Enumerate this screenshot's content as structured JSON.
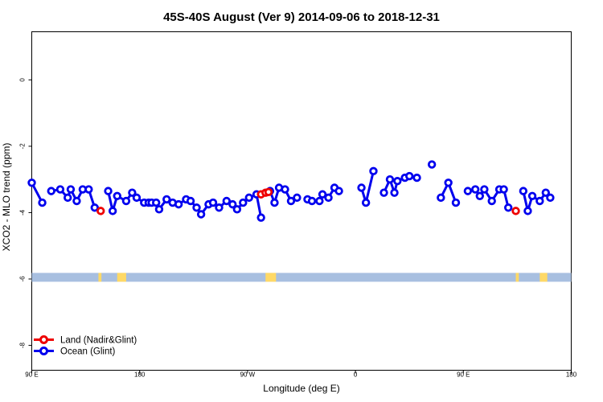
{
  "chart_data": {
    "type": "line",
    "title": "45S-40S August (Ver 9)   2014-09-06 to 2018-12-31",
    "xlabel": "Longitude (deg E)",
    "ylabel": "XCO2 - MLO trend (ppm)",
    "xlim": [
      90,
      450
    ],
    "ylim": [
      -8.75,
      1.45
    ],
    "x_ticks": [
      {
        "value": 90,
        "label": "90 E"
      },
      {
        "value": 162,
        "label": "180"
      },
      {
        "value": 234,
        "label": "90 W"
      },
      {
        "value": 306,
        "label": "0"
      },
      {
        "value": 378,
        "label": "90 E"
      },
      {
        "value": 450,
        "label": "180"
      }
    ],
    "y_ticks": [
      {
        "value": 0,
        "label": "0"
      },
      {
        "value": -2,
        "label": "-2"
      },
      {
        "value": -4,
        "label": "-4"
      },
      {
        "value": -6,
        "label": "-6"
      },
      {
        "value": -8,
        "label": "-8"
      }
    ],
    "series": [
      {
        "name": "Ocean (Glint)",
        "color": "#0000ee",
        "segments": [
          [
            [
              90,
              -3.1
            ],
            [
              97,
              -3.7
            ]
          ],
          [
            [
              103,
              -3.35
            ],
            [
              109,
              -3.3
            ],
            [
              114,
              -3.55
            ],
            [
              116,
              -3.3
            ],
            [
              120,
              -3.65
            ],
            [
              124,
              -3.3
            ],
            [
              128,
              -3.3
            ],
            [
              132,
              -3.85
            ]
          ],
          [
            [
              141,
              -3.35
            ],
            [
              144,
              -3.95
            ],
            [
              147,
              -3.5
            ],
            [
              153,
              -3.65
            ],
            [
              157,
              -3.4
            ],
            [
              160,
              -3.55
            ],
            [
              165,
              -3.7
            ],
            [
              168,
              -3.7
            ],
            [
              170,
              -3.7
            ],
            [
              173,
              -3.7
            ],
            [
              175,
              -3.9
            ],
            [
              180,
              -3.6
            ],
            [
              184,
              -3.7
            ],
            [
              188,
              -3.75
            ],
            [
              193,
              -3.6
            ],
            [
              196,
              -3.65
            ],
            [
              200,
              -3.85
            ],
            [
              203,
              -4.05
            ],
            [
              208,
              -3.75
            ],
            [
              211,
              -3.7
            ],
            [
              215,
              -3.85
            ],
            [
              220,
              -3.65
            ],
            [
              224,
              -3.75
            ],
            [
              227,
              -3.9
            ],
            [
              231,
              -3.7
            ],
            [
              235,
              -3.55
            ],
            [
              240,
              -3.45
            ],
            [
              243,
              -4.15
            ]
          ],
          [
            [
              249,
              -3.35
            ],
            [
              252,
              -3.7
            ],
            [
              255,
              -3.25
            ],
            [
              259,
              -3.3
            ],
            [
              263,
              -3.65
            ],
            [
              267,
              -3.55
            ]
          ],
          [
            [
              274,
              -3.6
            ],
            [
              277,
              -3.65
            ],
            [
              282,
              -3.65
            ],
            [
              284,
              -3.45
            ],
            [
              288,
              -3.55
            ],
            [
              292,
              -3.25
            ],
            [
              295,
              -3.35
            ]
          ],
          [
            [
              310,
              -3.25
            ],
            [
              313,
              -3.7
            ],
            [
              318,
              -2.75
            ]
          ],
          [
            [
              325,
              -3.4
            ],
            [
              329,
              -3.0
            ],
            [
              332,
              -3.4
            ],
            [
              334,
              -3.05
            ],
            [
              339,
              -2.95
            ],
            [
              342,
              -2.9
            ]
          ],
          [
            [
              347,
              -2.95
            ]
          ],
          [
            [
              357,
              -2.55
            ]
          ],
          [
            [
              363,
              -3.55
            ],
            [
              368,
              -3.1
            ],
            [
              373,
              -3.7
            ]
          ],
          [
            [
              381,
              -3.35
            ],
            [
              386,
              -3.3
            ],
            [
              389,
              -3.5
            ],
            [
              392,
              -3.3
            ],
            [
              397,
              -3.65
            ],
            [
              402,
              -3.3
            ],
            [
              405,
              -3.3
            ],
            [
              408,
              -3.85
            ]
          ],
          [
            [
              418,
              -3.35
            ],
            [
              421,
              -3.95
            ],
            [
              424,
              -3.5
            ],
            [
              429,
              -3.65
            ],
            [
              433,
              -3.4
            ],
            [
              436,
              -3.55
            ]
          ]
        ]
      },
      {
        "name": "Land (Nadir&Glint)",
        "color": "#ee0000",
        "segments": [
          [
            [
              136,
              -3.95
            ]
          ],
          [
            [
              243,
              -3.45
            ],
            [
              246,
              -3.4
            ],
            [
              248,
              -3.38
            ]
          ],
          [
            [
              413,
              -3.95
            ]
          ]
        ]
      }
    ],
    "surface_band": {
      "y": -5.95,
      "ocean_color": "#a8bfe0",
      "land_color": "#ffd966",
      "land_ranges": [
        [
          134.5,
          136.5
        ],
        [
          147,
          153
        ],
        [
          246,
          253
        ],
        [
          413,
          415
        ],
        [
          429,
          434
        ]
      ]
    },
    "legend": {
      "position": "bottom-left",
      "entries": [
        {
          "label": "Land (Nadir&Glint)",
          "color": "#ee0000"
        },
        {
          "label": "Ocean (Glint)",
          "color": "#0000ee"
        }
      ]
    },
    "grid": false
  }
}
